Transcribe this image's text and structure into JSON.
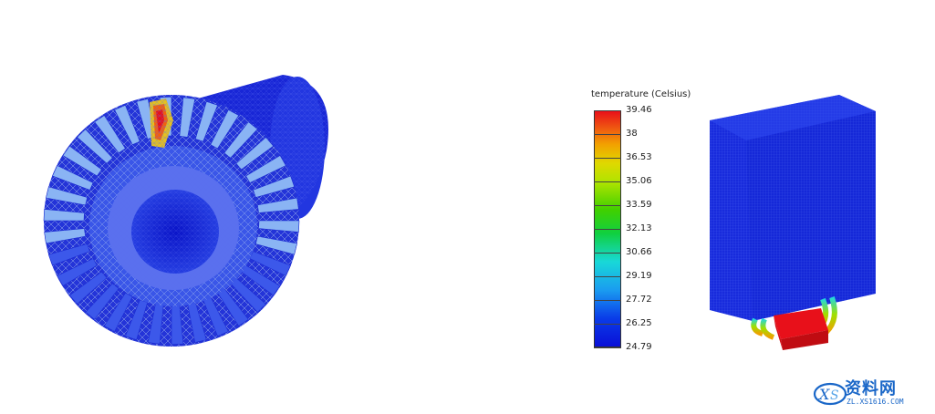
{
  "legend": {
    "title": "temperature (Celsius)",
    "ticks": [
      "39.46",
      "38",
      "36.53",
      "35.06",
      "33.59",
      "32.13",
      "30.66",
      "29.19",
      "27.72",
      "26.25",
      "24.79"
    ]
  },
  "colors": {
    "hot": "#e8101a",
    "cold": "#0a10d8",
    "mesh_blue": "#1a2ee0"
  },
  "watermark": {
    "text": "资料网",
    "url": "ZL.XS1616.COM"
  }
}
